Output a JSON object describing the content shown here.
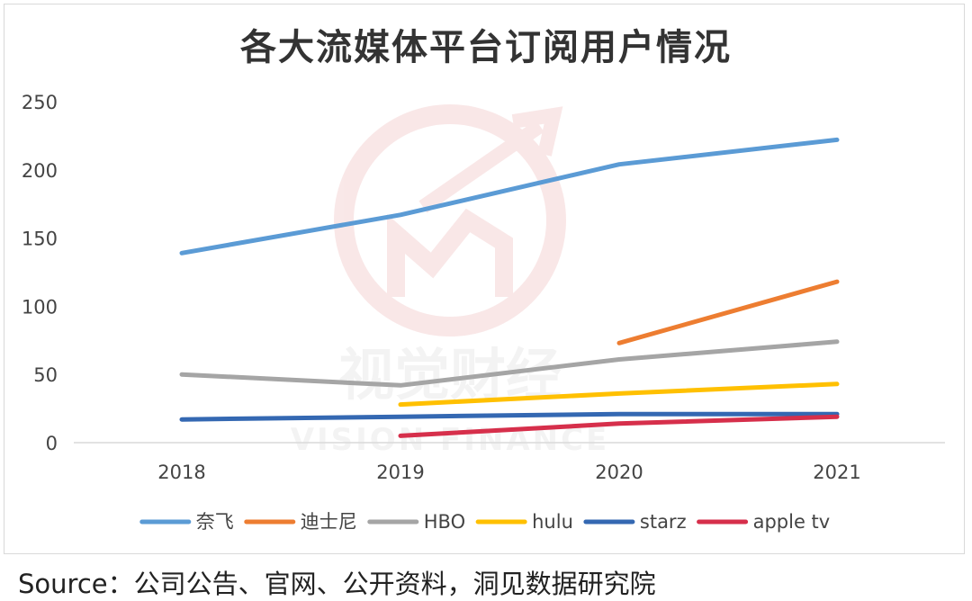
{
  "chart_data": {
    "type": "line",
    "title": "各大流媒体平台订阅用户情况",
    "categories": [
      "2018",
      "2019",
      "2020",
      "2021"
    ],
    "ylim": [
      0,
      250
    ],
    "yticks": [
      "0",
      "50",
      "100",
      "150",
      "200",
      "250"
    ],
    "grid": false,
    "legend_position": "bottom",
    "series": [
      {
        "name": "奈飞",
        "color": "#5B9BD5",
        "values": [
          139,
          167,
          204,
          222
        ]
      },
      {
        "name": "迪士尼",
        "color": "#ED7D31",
        "values": [
          null,
          null,
          73,
          118
        ]
      },
      {
        "name": "HBO",
        "color": "#A5A5A5",
        "values": [
          50,
          42,
          61,
          74
        ]
      },
      {
        "name": "hulu",
        "color": "#FFC000",
        "values": [
          null,
          28,
          36,
          43
        ]
      },
      {
        "name": "starz",
        "color": "#3468B2",
        "values": [
          17,
          19,
          21,
          21
        ]
      },
      {
        "name": "apple tv",
        "color": "#D62F4B",
        "values": [
          null,
          5,
          14,
          19
        ]
      }
    ]
  },
  "source": "Source：公司公告、官网、公开资料，洞见数据研究院",
  "watermark": {
    "main": "视觉财经",
    "sub": "VISION FINANCE"
  }
}
